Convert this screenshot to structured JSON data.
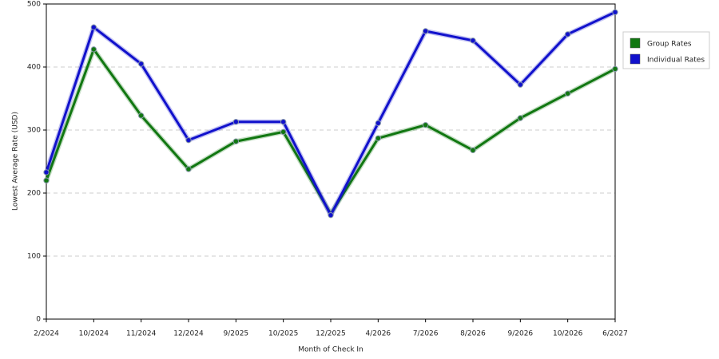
{
  "chart_data": {
    "type": "line",
    "x_label": "Month of Check In",
    "y_label": "Lowest Average Rate (USD)",
    "categories": [
      "2/2024",
      "10/2024",
      "11/2024",
      "12/2024",
      "9/2025",
      "10/2025",
      "12/2025",
      "4/2026",
      "7/2026",
      "8/2026",
      "9/2026",
      "10/2026",
      "6/2027"
    ],
    "series": [
      {
        "name": "Group Rates",
        "color": "#117711",
        "values": [
          220,
          428,
          323,
          238,
          282,
          297,
          167,
          287,
          308,
          268,
          319,
          358,
          397
        ]
      },
      {
        "name": "Individual Rates",
        "color": "#1111cc",
        "values": [
          233,
          463,
          405,
          284,
          313,
          313,
          165,
          311,
          457,
          442,
          372,
          452,
          487
        ]
      }
    ],
    "ylim": [
      0,
      500
    ],
    "yticks": [
      0,
      100,
      200,
      300,
      400,
      500
    ],
    "grid": true,
    "legend": "right"
  }
}
